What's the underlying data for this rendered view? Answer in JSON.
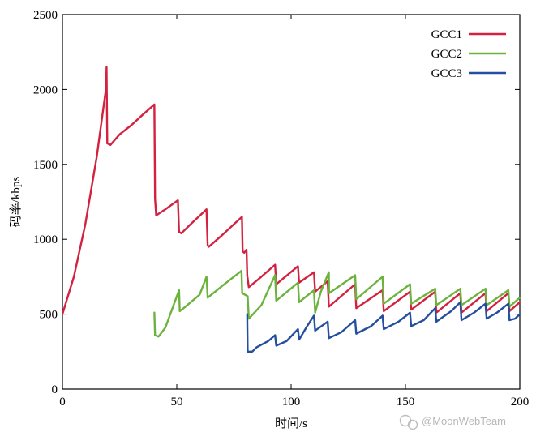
{
  "chart_data": {
    "type": "line",
    "title": "",
    "xlabel": "时间/s",
    "ylabel": "码率/kbps",
    "xlim": [
      0,
      200
    ],
    "ylim": [
      0,
      2500
    ],
    "x_ticks": [
      0,
      50,
      100,
      150,
      200
    ],
    "y_ticks": [
      0,
      500,
      1000,
      1500,
      2000,
      2500
    ],
    "grid": false,
    "legend_position": "top-right",
    "series": [
      {
        "name": "GCC1",
        "color": "#d2223f",
        "points": [
          [
            0,
            500
          ],
          [
            5,
            750
          ],
          [
            10,
            1100
          ],
          [
            15,
            1550
          ],
          [
            19,
            2000
          ],
          [
            19.3,
            2150
          ],
          [
            19.6,
            1640
          ],
          [
            21,
            1630
          ],
          [
            25,
            1700
          ],
          [
            30,
            1760
          ],
          [
            35,
            1830
          ],
          [
            40.2,
            1900
          ],
          [
            40.5,
            1270
          ],
          [
            41,
            1160
          ],
          [
            45,
            1200
          ],
          [
            50.5,
            1260
          ],
          [
            51,
            1050
          ],
          [
            52,
            1040
          ],
          [
            56,
            1100
          ],
          [
            63,
            1200
          ],
          [
            63.5,
            960
          ],
          [
            64,
            950
          ],
          [
            70,
            1030
          ],
          [
            78.5,
            1150
          ],
          [
            78.8,
            920
          ],
          [
            79.5,
            910
          ],
          [
            80.5,
            930
          ],
          [
            80.8,
            760
          ],
          [
            81.5,
            680
          ],
          [
            87,
            750
          ],
          [
            93,
            830
          ],
          [
            93.5,
            700
          ],
          [
            103,
            820
          ],
          [
            103.5,
            710
          ],
          [
            110,
            780
          ],
          [
            110.5,
            650
          ],
          [
            116,
            720
          ],
          [
            116.5,
            550
          ],
          [
            128,
            700
          ],
          [
            128.5,
            540
          ],
          [
            140,
            660
          ],
          [
            140.5,
            520
          ],
          [
            152,
            650
          ],
          [
            152.5,
            530
          ],
          [
            163,
            650
          ],
          [
            163.5,
            510
          ],
          [
            174,
            640
          ],
          [
            174.5,
            510
          ],
          [
            185,
            640
          ],
          [
            185.5,
            520
          ],
          [
            195,
            640
          ],
          [
            195.5,
            520
          ],
          [
            200,
            580
          ]
        ]
      },
      {
        "name": "GCC2",
        "color": "#6cb33e",
        "segments": [
          [
            [
              40.2,
              510
            ],
            [
              40.5,
              360
            ],
            [
              42,
              350
            ],
            [
              45,
              410
            ],
            [
              51,
              660
            ],
            [
              51.3,
              520
            ],
            [
              53,
              540
            ],
            [
              60,
              630
            ],
            [
              63,
              750
            ],
            [
              63.5,
              610
            ],
            [
              70,
              690
            ],
            [
              78.3,
              790
            ],
            [
              78.6,
              640
            ],
            [
              81,
              620
            ],
            [
              81.5,
              470
            ],
            [
              87,
              560
            ],
            [
              93,
              760
            ],
            [
              93.5,
              590
            ],
            [
              103,
              710
            ],
            [
              103.5,
              580
            ],
            [
              110,
              660
            ],
            [
              110.5,
              510
            ],
            [
              113,
              650
            ],
            [
              116.5,
              780
            ],
            [
              116.6,
              640
            ],
            [
              128,
              760
            ],
            [
              128.5,
              600
            ],
            [
              140,
              750
            ],
            [
              140.5,
              570
            ],
            [
              152,
              700
            ],
            [
              152.5,
              570
            ],
            [
              163,
              670
            ],
            [
              163.5,
              560
            ],
            [
              174,
              670
            ],
            [
              174.5,
              560
            ],
            [
              185,
              670
            ],
            [
              185.5,
              560
            ],
            [
              195,
              660
            ],
            [
              195.5,
              550
            ],
            [
              200,
              610
            ]
          ]
        ]
      },
      {
        "name": "GCC3",
        "color": "#234f9e",
        "segments": [
          [
            [
              80.8,
              500
            ],
            [
              81,
              250
            ],
            [
              83,
              250
            ],
            [
              85,
              280
            ],
            [
              90,
              320
            ],
            [
              93,
              360
            ],
            [
              93.5,
              290
            ],
            [
              98,
              320
            ],
            [
              103,
              400
            ],
            [
              103.5,
              330
            ],
            [
              107,
              420
            ],
            [
              110,
              490
            ],
            [
              110.5,
              390
            ],
            [
              116,
              450
            ],
            [
              116.5,
              340
            ],
            [
              122,
              380
            ],
            [
              128,
              460
            ],
            [
              128.5,
              370
            ],
            [
              135,
              420
            ],
            [
              140,
              490
            ],
            [
              140.5,
              400
            ],
            [
              147,
              450
            ],
            [
              152,
              510
            ],
            [
              152.5,
              420
            ],
            [
              158,
              460
            ],
            [
              163,
              540
            ],
            [
              163.5,
              450
            ],
            [
              170,
              520
            ],
            [
              174,
              580
            ],
            [
              174.5,
              460
            ],
            [
              180,
              510
            ],
            [
              185,
              570
            ],
            [
              185.5,
              470
            ],
            [
              190,
              510
            ],
            [
              195,
              570
            ],
            [
              195.5,
              460
            ],
            [
              198,
              470
            ],
            [
              200,
              500
            ]
          ]
        ]
      }
    ]
  },
  "watermark": {
    "icon": "wechat-icon",
    "text": "@MoonWebTeam"
  }
}
